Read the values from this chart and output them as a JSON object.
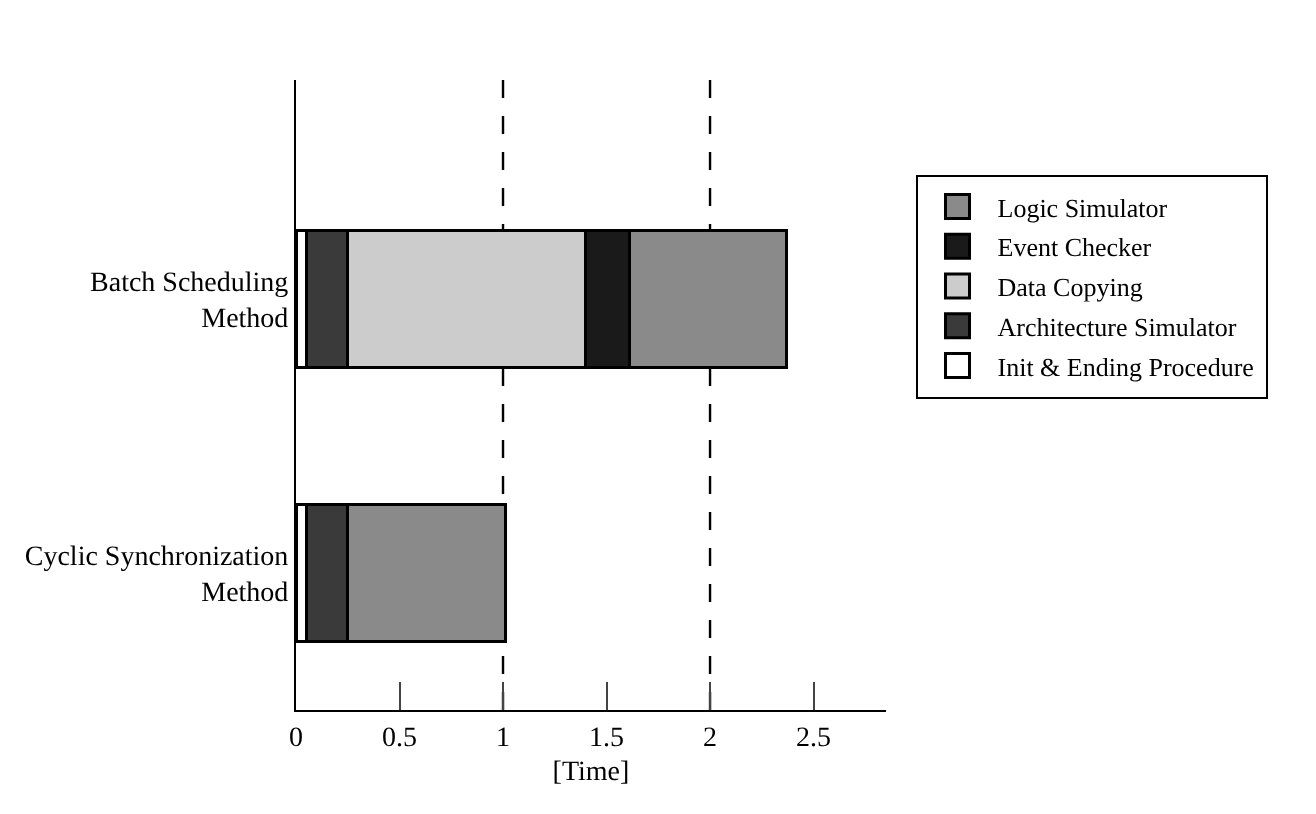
{
  "chart_data": {
    "type": "bar",
    "orientation": "horizontal",
    "stacked": true,
    "categories": [
      "Batch Scheduling\nMethod",
      "Cyclic Synchronization\nMethod"
    ],
    "series": [
      {
        "name": "Init & Ending Procedure",
        "color": "#ffffff",
        "values": [
          0.05,
          0.05
        ]
      },
      {
        "name": "Architecture Simulator",
        "color": "#3a3a3a",
        "values": [
          0.2,
          0.2
        ]
      },
      {
        "name": "Data Copying",
        "color": "#cccccc",
        "values": [
          1.15,
          null
        ]
      },
      {
        "name": "Event Checker",
        "color": "#1a1a1a",
        "values": [
          0.21,
          null
        ]
      },
      {
        "name": "Logic Simulator",
        "color": "#8a8a8a",
        "values": [
          0.76,
          0.76
        ]
      }
    ],
    "xlabel": "[Time]",
    "xlim": [
      0,
      2.85
    ],
    "xticks": [
      0,
      {
        "value": 0.5,
        "label": "0.5"
      },
      1,
      {
        "value": 1.5,
        "label": "1.5"
      },
      2,
      {
        "value": 2.5,
        "label": "2.5"
      }
    ],
    "ref_lines": [
      {
        "axis": "x",
        "value": 1,
        "line_style": "dashed"
      },
      {
        "axis": "x",
        "value": 2,
        "line_style": "dashed"
      }
    ],
    "grid": false,
    "legend": "right"
  }
}
